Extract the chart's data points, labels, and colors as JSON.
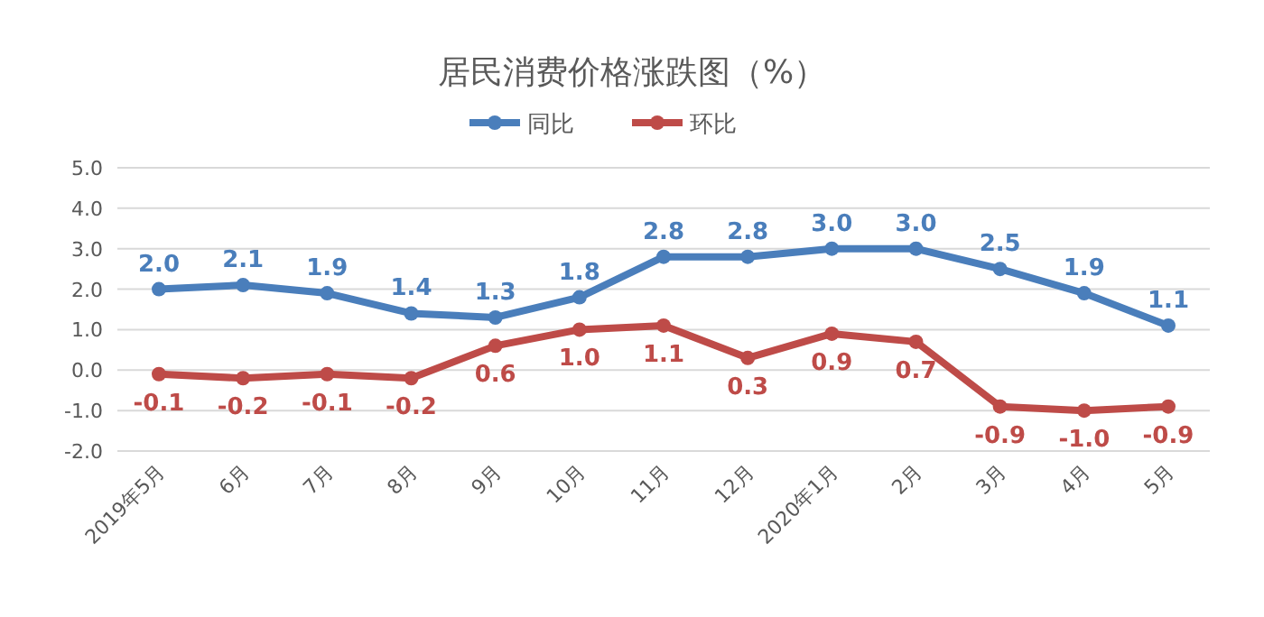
{
  "chart_data": {
    "type": "line",
    "title": "居民消费价格涨跌图（%）",
    "categories": [
      "2019年5月",
      "6月",
      "7月",
      "8月",
      "9月",
      "10月",
      "11月",
      "12月",
      "2020年1月",
      "2月",
      "3月",
      "4月",
      "5月"
    ],
    "series": [
      {
        "name": "同比",
        "color": "#4a7ebb",
        "values": [
          2.0,
          2.1,
          1.9,
          1.4,
          1.3,
          1.8,
          2.8,
          2.8,
          3.0,
          3.0,
          2.5,
          1.9,
          1.1
        ],
        "value_labels": [
          "2.0",
          "2.1",
          "1.9",
          "1.4",
          "1.3",
          "1.8",
          "2.8",
          "2.8",
          "3.0",
          "3.0",
          "2.5",
          "1.9",
          "1.1"
        ]
      },
      {
        "name": "环比",
        "color": "#be4b48",
        "values": [
          -0.1,
          -0.2,
          -0.1,
          -0.2,
          0.6,
          1.0,
          1.1,
          0.3,
          0.9,
          0.7,
          -0.9,
          -1.0,
          -0.9
        ],
        "value_labels": [
          "-0.1",
          "-0.2",
          "-0.1",
          "-0.2",
          "0.6",
          "1.0",
          "1.1",
          "0.3",
          "0.9",
          "0.7",
          "-0.9",
          "-1.0",
          "-0.9"
        ]
      }
    ],
    "ylim": [
      -2,
      5
    ],
    "yticks": [
      {
        "value": -2,
        "label": "-2.0"
      },
      {
        "value": -1,
        "label": "-1.0"
      },
      {
        "value": 0,
        "label": "0.0"
      },
      {
        "value": 1,
        "label": "1.0"
      },
      {
        "value": 2,
        "label": "2.0"
      },
      {
        "value": 3,
        "label": "3.0"
      },
      {
        "value": 4,
        "label": "4.0"
      },
      {
        "value": 5,
        "label": "5.0"
      }
    ],
    "grid": "y",
    "legend": "top",
    "marker": "circle",
    "line_style": "solid"
  }
}
